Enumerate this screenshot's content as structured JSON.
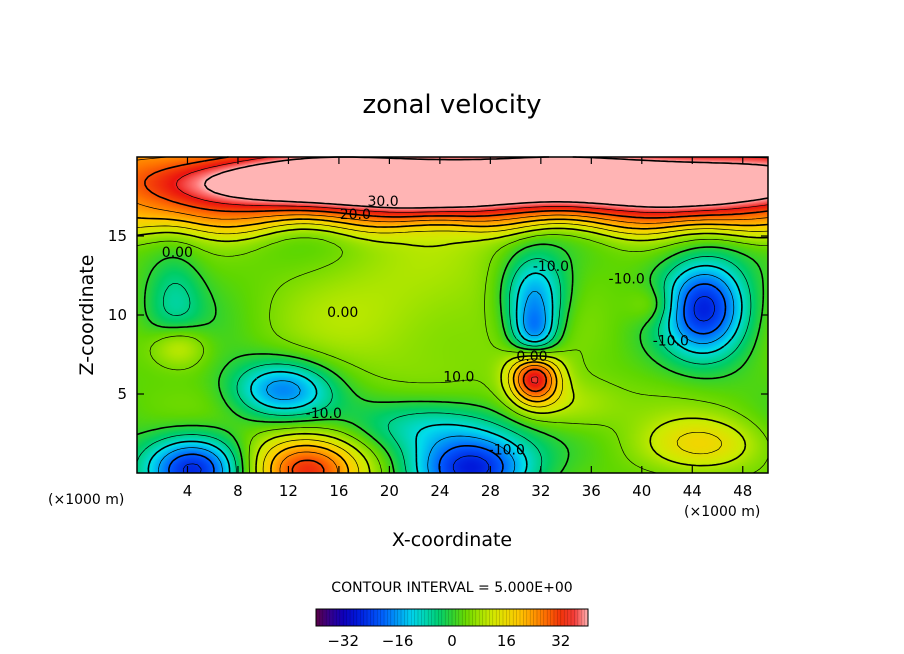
{
  "chart_data": {
    "type": "heatmap",
    "title": "zonal velocity",
    "xlabel": "X-coordinate",
    "ylabel": "Z-coordinate",
    "x_unit": "(×1000 m)",
    "x_unit_right": "(×1000 m)",
    "xlim": [
      0,
      50
    ],
    "ylim": [
      0,
      20
    ],
    "x_ticks": [
      "4",
      "8",
      "12",
      "16",
      "20",
      "24",
      "28",
      "32",
      "36",
      "40",
      "44",
      "48"
    ],
    "y_ticks": [
      "5",
      "10",
      "15"
    ],
    "contour_interval_text": "CONTOUR INTERVAL = 5.000E+00",
    "contour_labels": [
      {
        "text": "30.0",
        "x": 19.5,
        "z": 17.2
      },
      {
        "text": "20.0",
        "x": 17.3,
        "z": 16.4
      },
      {
        "text": "0.00",
        "x": 3.2,
        "z": 14.0
      },
      {
        "text": "-10.0",
        "x": 32.8,
        "z": 13.1
      },
      {
        "text": "-10.0",
        "x": 38.8,
        "z": 12.3
      },
      {
        "text": "0.00",
        "x": 16.3,
        "z": 10.2
      },
      {
        "text": "-10.0",
        "x": 42.3,
        "z": 8.4
      },
      {
        "text": "0.00",
        "x": 31.3,
        "z": 7.4
      },
      {
        "text": "10.0",
        "x": 25.5,
        "z": 6.1
      },
      {
        "text": "-10.0",
        "x": 14.8,
        "z": 3.8
      },
      {
        "text": "-10.0",
        "x": 29.3,
        "z": 1.5
      }
    ],
    "colorbar": {
      "range": [
        -40,
        40
      ],
      "ticks": [
        {
          "value": -32,
          "label": "−32"
        },
        {
          "value": -16,
          "label": "−16"
        },
        {
          "value": 0,
          "label": "0"
        },
        {
          "value": 16,
          "label": "16"
        },
        {
          "value": 32,
          "label": "32"
        }
      ]
    },
    "features": [
      {
        "x": 17,
        "z": 18.4,
        "u": 38,
        "sx": 10,
        "sz": 1.3
      },
      {
        "x": 48,
        "z": 18.3,
        "u": 24,
        "sx": 9,
        "sz": 1.4
      },
      {
        "x": 35,
        "z": 18.5,
        "u": 18,
        "sx": 8,
        "sz": 1.5
      },
      {
        "x": 31.5,
        "z": 6.1,
        "u": 33,
        "sx": 1.4,
        "sz": 1.2
      },
      {
        "x": 13.5,
        "z": 0.3,
        "u": 30,
        "sx": 3.2,
        "sz": 1.6
      },
      {
        "x": 4.5,
        "z": 0.3,
        "u": -30,
        "sx": 2.8,
        "sz": 1.5
      },
      {
        "x": 26.5,
        "z": 0.3,
        "u": -30,
        "sx": 3.3,
        "sz": 1.5
      },
      {
        "x": 45,
        "z": 10.5,
        "u": -28,
        "sx": 2.4,
        "sz": 2.2
      },
      {
        "x": 31.5,
        "z": 11.2,
        "u": -20,
        "sx": 1.8,
        "sz": 1.8
      },
      {
        "x": 31.5,
        "z": 8.6,
        "u": -18,
        "sx": 1.3,
        "sz": 1.3
      },
      {
        "x": 11.5,
        "z": 5.3,
        "u": -20,
        "sx": 2.8,
        "sz": 1.3
      },
      {
        "x": 23,
        "z": 3.0,
        "u": -13,
        "sx": 4,
        "sz": 1.3
      },
      {
        "x": 3,
        "z": 11,
        "u": -8,
        "sx": 1.6,
        "sz": 2.5
      },
      {
        "x": 3.3,
        "z": 8.0,
        "u": 12,
        "sx": 1.6,
        "sz": 1.0
      },
      {
        "x": 45,
        "z": 1.8,
        "u": 12,
        "sx": 3.3,
        "sz": 1.2
      },
      {
        "x": 22,
        "z": 10.5,
        "u": 7,
        "sx": 6,
        "sz": 3.5
      },
      {
        "x": 41,
        "z": 10.6,
        "u": 7,
        "sx": 1.4,
        "sz": 0.9
      },
      {
        "x": 34,
        "z": 4.3,
        "u": 8,
        "sx": 3,
        "sz": 1.2
      }
    ]
  }
}
